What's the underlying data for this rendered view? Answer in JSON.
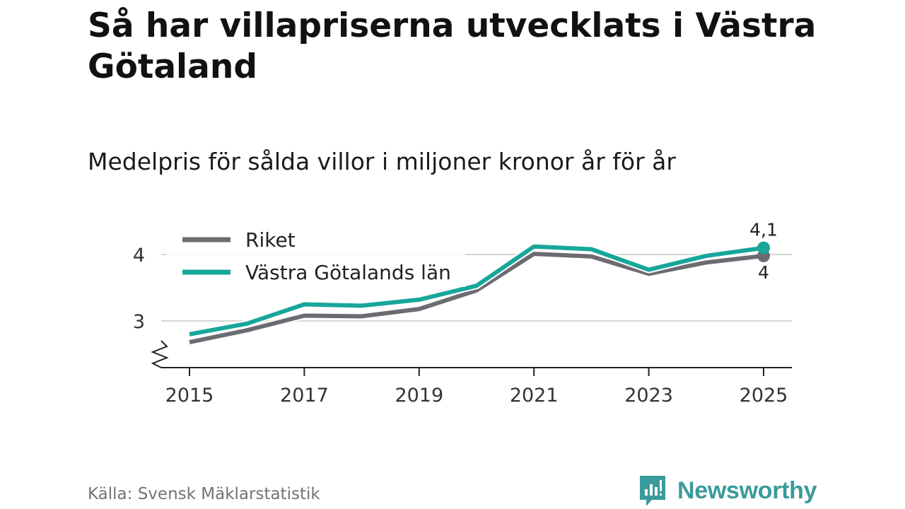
{
  "title": "Så har villapriserna utvecklats i Västra Götaland",
  "subtitle": "Medelpris för sålda villor i miljoner kronor år för år",
  "source": "Källa: Svensk Mäklarstatistik",
  "brand": "Newsworthy",
  "colors": {
    "riket": "#6d6b72",
    "vastra": "#17a79a",
    "brand": "#3a9b9a"
  },
  "chart_data": {
    "type": "line",
    "x": [
      2015,
      2016,
      2017,
      2018,
      2019,
      2020,
      2021,
      2022,
      2023,
      2024,
      2025
    ],
    "x_ticks": [
      "2015",
      "2017",
      "2019",
      "2021",
      "2023",
      "2025"
    ],
    "y_ticks": [
      "3",
      "4"
    ],
    "ylim": [
      2.3,
      4.5
    ],
    "grid": true,
    "legend": "top-left",
    "series": [
      {
        "name": "Riket",
        "color_key": "riket",
        "values": [
          2.68,
          2.86,
          3.08,
          3.07,
          3.18,
          3.46,
          4.01,
          3.97,
          3.71,
          3.88,
          3.98
        ],
        "end_label": "4"
      },
      {
        "name": "Västra Götalands län",
        "color_key": "vastra",
        "values": [
          2.8,
          2.96,
          3.25,
          3.23,
          3.32,
          3.53,
          4.12,
          4.08,
          3.77,
          3.98,
          4.1
        ],
        "end_label": "4,1"
      }
    ]
  }
}
